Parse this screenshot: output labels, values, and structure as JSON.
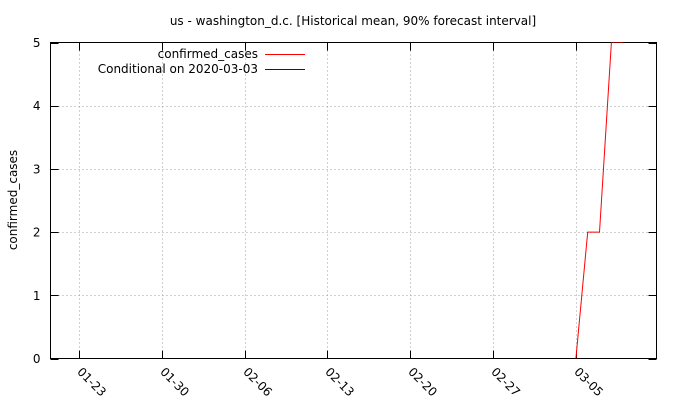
{
  "chart_data": {
    "type": "line",
    "title": "us - washington_d.c. [Historical mean, 90% forecast interval]",
    "xlabel": "",
    "ylabel": "confirmed_cases",
    "x_tick_labels": [
      "01-23",
      "01-30",
      "02-06",
      "02-13",
      "02-20",
      "02-27",
      "03-05"
    ],
    "ylim": [
      0,
      5
    ],
    "y_ticks": [
      0,
      1,
      2,
      3,
      4,
      5
    ],
    "grid": true,
    "legend_position": "top-left",
    "series": [
      {
        "name": "confirmed_cases",
        "color": "#ff0000",
        "x": [
          "03-05",
          "03-06",
          "03-07",
          "03-08",
          "03-09"
        ],
        "y": [
          0,
          2,
          2,
          5,
          5
        ]
      },
      {
        "name": "Conditional on 2020-03-03",
        "color": "#0000ff",
        "x": [],
        "y": []
      }
    ]
  }
}
